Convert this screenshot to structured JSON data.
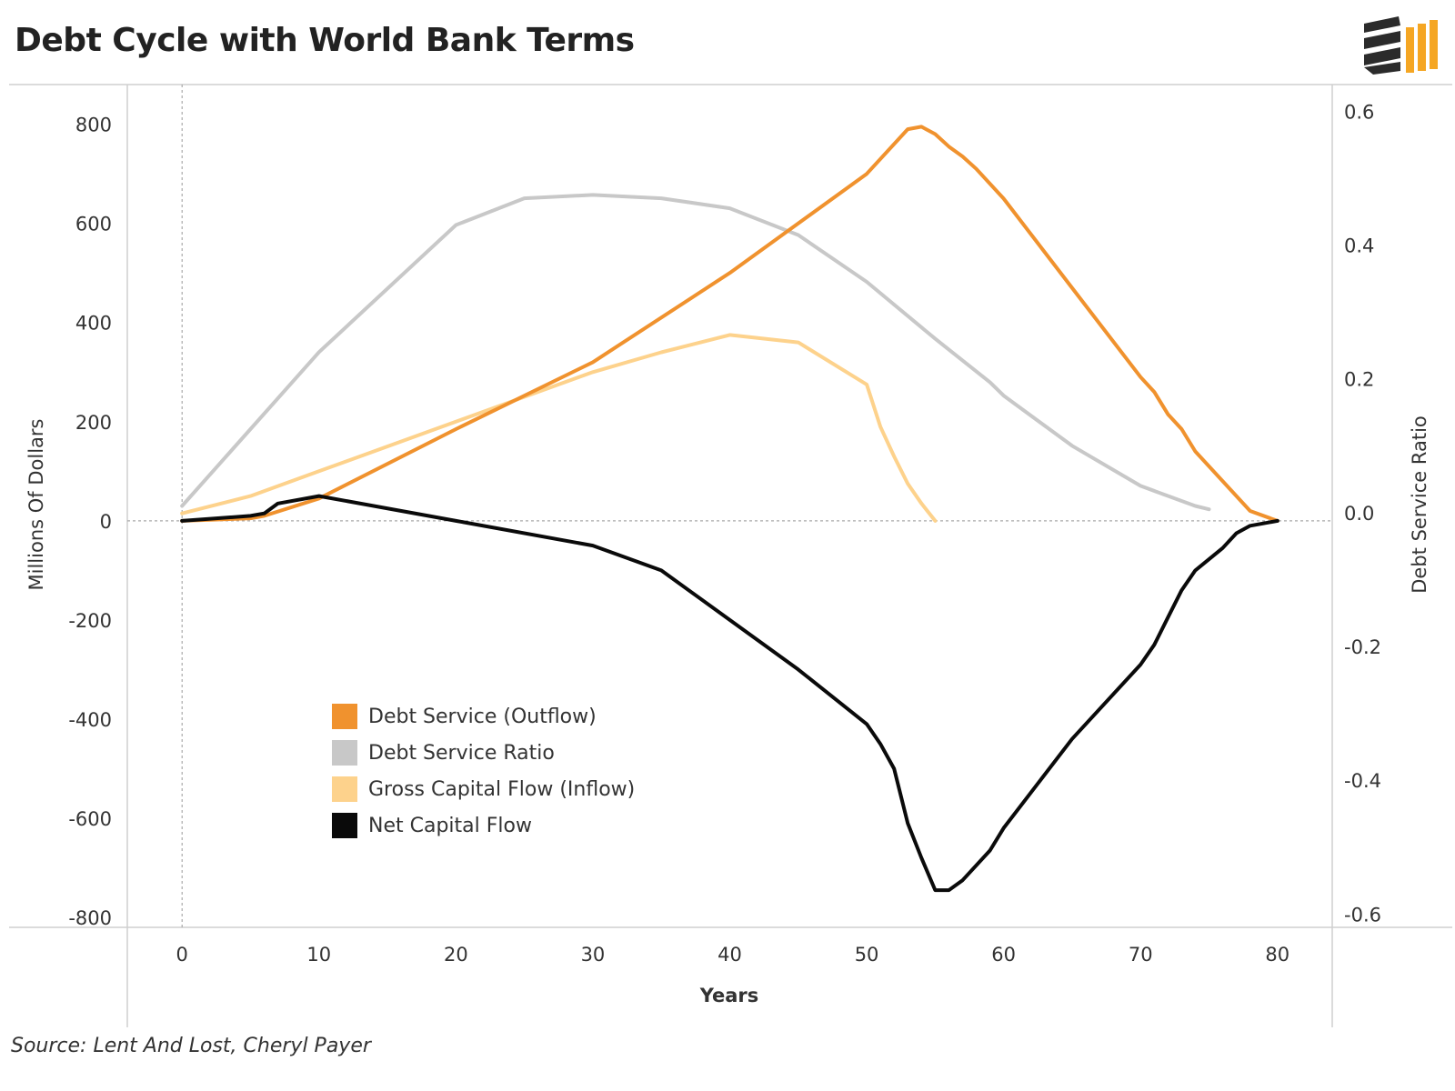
{
  "header": {
    "title": "Debt Cycle with World Bank Terms"
  },
  "footer": {
    "source": "Source: Lent And Lost, Cheryl Payer"
  },
  "logo": {
    "icon": "brand-logo-icon",
    "colors": [
      "#2b2b2b",
      "#f5a623"
    ]
  },
  "chart_data": {
    "type": "line",
    "title": "Debt Cycle with World Bank Terms",
    "xlabel": "Years",
    "ylabel": "Millions Of Dollars",
    "y2label": "Debt Service Ratio",
    "xlim": [
      -4,
      84
    ],
    "ylim": [
      -820,
      880
    ],
    "y2lim": [
      -0.62,
      0.64
    ],
    "x_ticks": [
      0,
      10,
      20,
      30,
      40,
      50,
      60,
      70,
      80
    ],
    "y_ticks": [
      800,
      600,
      400,
      200,
      0,
      -200,
      -400,
      -600,
      -800
    ],
    "y2_ticks": [
      "0.6",
      "0.4",
      "0.2",
      "0.0",
      "-0.2",
      "-0.4",
      "-0.6"
    ],
    "y2_tick_values": [
      0.6,
      0.4,
      0.2,
      0.0,
      -0.2,
      -0.4,
      -0.6
    ],
    "grid": false,
    "legend_position": "bottom-left",
    "series": [
      {
        "name": "Debt Service (Outflow)",
        "axis": "left",
        "color": "#f0922e",
        "x": [
          0,
          5,
          6,
          10,
          20,
          30,
          40,
          50,
          53,
          54,
          55,
          56,
          57,
          58,
          60,
          65,
          70,
          71,
          72,
          73,
          74,
          78,
          80
        ],
        "y": [
          0,
          5,
          10,
          45,
          185,
          320,
          500,
          700,
          790,
          795,
          780,
          755,
          735,
          710,
          650,
          470,
          290,
          260,
          215,
          185,
          140,
          20,
          0
        ]
      },
      {
        "name": "Debt Service Ratio",
        "axis": "right",
        "color": "#c8c8c8",
        "x": [
          0,
          10,
          20,
          25,
          30,
          35,
          40,
          45,
          50,
          55,
          59,
          60,
          65,
          70,
          74,
          75
        ],
        "y": [
          0.01,
          0.24,
          0.43,
          0.47,
          0.475,
          0.47,
          0.455,
          0.415,
          0.345,
          0.26,
          0.195,
          0.175,
          0.1,
          0.04,
          0.01,
          0.005
        ]
      },
      {
        "name": "Gross Capital Flow (Inflow)",
        "axis": "left",
        "color": "#fdd28c",
        "x": [
          0,
          5,
          10,
          20,
          30,
          35,
          40,
          45,
          50,
          51,
          52,
          53,
          54,
          55
        ],
        "y": [
          15,
          50,
          100,
          200,
          300,
          340,
          375,
          360,
          275,
          190,
          130,
          75,
          35,
          0
        ]
      },
      {
        "name": "Net Capital Flow",
        "axis": "left",
        "color": "#0a0a0a",
        "x": [
          0,
          5,
          6,
          7,
          10,
          20,
          30,
          35,
          40,
          45,
          50,
          51,
          52,
          53,
          54,
          55,
          56,
          57,
          59,
          60,
          65,
          70,
          71,
          72,
          73,
          74,
          76,
          77,
          78,
          80
        ],
        "y": [
          0,
          10,
          15,
          35,
          50,
          0,
          -50,
          -100,
          -200,
          -300,
          -410,
          -450,
          -500,
          -610,
          -680,
          -745,
          -745,
          -725,
          -665,
          -620,
          -440,
          -290,
          -250,
          -195,
          -140,
          -100,
          -55,
          -25,
          -10,
          0
        ]
      }
    ]
  }
}
